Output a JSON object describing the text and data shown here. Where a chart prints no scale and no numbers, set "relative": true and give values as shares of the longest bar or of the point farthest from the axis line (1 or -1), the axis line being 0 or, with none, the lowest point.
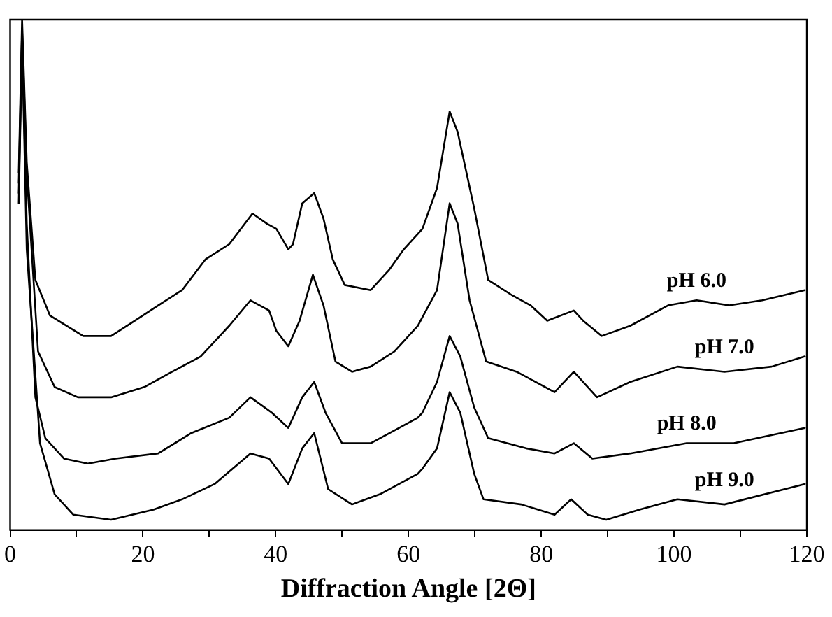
{
  "chart_data": {
    "type": "line",
    "xlabel": "Diffraction Angle [2Θ]",
    "relative": true,
    "tick_labels": "x",
    "legend": false,
    "grid": false,
    "marker": "none",
    "line_style": "solid",
    "xlim": [
      0,
      120
    ],
    "xticks": [
      0,
      {
        "value": 10,
        "label": null
      },
      20,
      {
        "value": 30,
        "label": null
      },
      40,
      {
        "value": 50,
        "label": null
      },
      60,
      {
        "value": 70,
        "label": null
      },
      80,
      {
        "value": 90,
        "label": null
      },
      100,
      {
        "value": 110,
        "label": null
      },
      120
    ],
    "series": [
      {
        "name": "pH 6.0",
        "color": "#000000",
        "x": [
          1.3,
          1.8,
          2.5,
          3.8,
          6,
          11,
          15.2,
          18.8,
          22.3,
          25.9,
          29.4,
          33,
          36.5,
          38.7,
          40.1,
          41.9,
          42.6,
          44,
          45.8,
          47.2,
          48.6,
          50.4,
          54.3,
          57.1,
          59.3,
          62.1,
          64.3,
          66.2,
          67.4,
          69.9,
          72,
          75.6,
          78.4,
          80.9,
          84.9,
          86.3,
          89.1,
          93.4,
          99.1,
          103.4,
          108.3,
          113.3,
          119.7
        ],
        "values": [
          0.7,
          1.0,
          0.72,
          0.49,
          0.42,
          0.38,
          0.38,
          0.41,
          0.44,
          0.47,
          0.53,
          0.56,
          0.62,
          0.6,
          0.59,
          0.55,
          0.56,
          0.64,
          0.66,
          0.61,
          0.53,
          0.48,
          0.47,
          0.51,
          0.55,
          0.59,
          0.67,
          0.82,
          0.78,
          0.63,
          0.49,
          0.46,
          0.44,
          0.41,
          0.43,
          0.41,
          0.38,
          0.4,
          0.44,
          0.45,
          0.44,
          0.45,
          0.47
        ]
      },
      {
        "name": "pH 7.0",
        "color": "#000000",
        "x": [
          1.3,
          1.8,
          2.5,
          4.2,
          6.7,
          10.2,
          15.2,
          20.2,
          24.4,
          28.7,
          33,
          36.2,
          39,
          40.1,
          41.9,
          43.6,
          45.6,
          47.2,
          49,
          51.5,
          54.3,
          57.9,
          61.4,
          64.3,
          66.2,
          67.4,
          69.2,
          71.7,
          76.3,
          82,
          84.9,
          88.4,
          93.4,
          100.5,
          107.6,
          114.7,
          119.7
        ],
        "values": [
          0.68,
          0.98,
          0.7,
          0.35,
          0.28,
          0.26,
          0.26,
          0.28,
          0.31,
          0.34,
          0.4,
          0.45,
          0.43,
          0.39,
          0.36,
          0.41,
          0.5,
          0.44,
          0.33,
          0.31,
          0.32,
          0.35,
          0.4,
          0.47,
          0.64,
          0.6,
          0.45,
          0.33,
          0.31,
          0.27,
          0.31,
          0.26,
          0.29,
          0.32,
          0.31,
          0.32,
          0.34
        ]
      },
      {
        "name": "pH 8.0",
        "color": "#000000",
        "x": [
          1.3,
          1.8,
          2.5,
          3.8,
          5.3,
          8.1,
          11.7,
          15.9,
          22.3,
          27.3,
          33,
          36.2,
          39.4,
          41.9,
          44,
          45.8,
          47.5,
          50,
          54.3,
          58.6,
          61.4,
          62.1,
          64.3,
          66.2,
          67.8,
          69.9,
          72,
          77.7,
          82,
          84.9,
          87.7,
          93.4,
          101.9,
          109,
          119.7
        ],
        "values": [
          0.66,
          0.97,
          0.6,
          0.26,
          0.18,
          0.14,
          0.13,
          0.14,
          0.15,
          0.19,
          0.22,
          0.26,
          0.23,
          0.2,
          0.26,
          0.29,
          0.23,
          0.17,
          0.17,
          0.2,
          0.22,
          0.23,
          0.29,
          0.38,
          0.34,
          0.24,
          0.18,
          0.16,
          0.15,
          0.17,
          0.14,
          0.15,
          0.17,
          0.17,
          0.2
        ]
      },
      {
        "name": "pH 9.0",
        "color": "#000000",
        "x": [
          1.3,
          1.8,
          2.5,
          4.5,
          6.7,
          9.5,
          15.2,
          21.6,
          25.9,
          30.8,
          36.2,
          39,
          41.9,
          44,
          45.8,
          47.9,
          51.5,
          55.7,
          61.4,
          62.1,
          64.3,
          66.2,
          67.8,
          69.9,
          71.3,
          77,
          82,
          84.5,
          87,
          89.8,
          94.8,
          100.5,
          107.6,
          119.7
        ],
        "values": [
          0.64,
          0.96,
          0.55,
          0.17,
          0.07,
          0.03,
          0.02,
          0.04,
          0.06,
          0.09,
          0.15,
          0.14,
          0.09,
          0.16,
          0.19,
          0.08,
          0.05,
          0.07,
          0.11,
          0.12,
          0.16,
          0.27,
          0.23,
          0.11,
          0.06,
          0.05,
          0.03,
          0.06,
          0.03,
          0.02,
          0.04,
          0.06,
          0.05,
          0.09
        ]
      }
    ]
  }
}
